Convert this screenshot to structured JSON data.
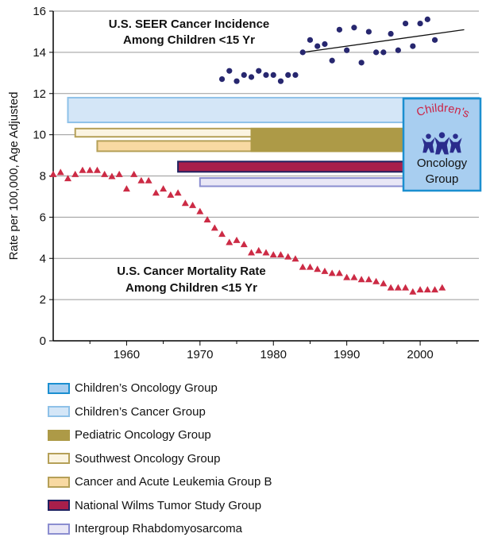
{
  "chart_data": {
    "type": "scatter",
    "ylabel": "Rate per 100,000, Age Adjusted",
    "xlabel": "",
    "xlim": [
      1950,
      2008
    ],
    "ylim": [
      0,
      16
    ],
    "x_ticks": [
      "1960",
      "1970",
      "1980",
      "1990",
      "2000"
    ],
    "y_ticks": [
      "0",
      "2",
      "4",
      "6",
      "8",
      "10",
      "12",
      "14",
      "16"
    ],
    "grid": true,
    "annotations": {
      "incidence": [
        "U.S. SEER Cancer Incidence",
        "Among Children <15 Yr"
      ],
      "mortality": [
        "U.S.  Cancer Mortality Rate",
        "Among Children <15 Yr"
      ]
    },
    "series": [
      {
        "key": "incidence",
        "marker": "circle",
        "color": "#27276f",
        "x": [
          1973,
          1974,
          1975,
          1976,
          1977,
          1978,
          1979,
          1980,
          1981,
          1982,
          1983,
          1984,
          1985,
          1986,
          1987,
          1988,
          1989,
          1990,
          1991,
          1992,
          1993,
          1994,
          1995,
          1996,
          1997,
          1998,
          1999,
          2000,
          2001,
          2002
        ],
        "y": [
          12.7,
          13.1,
          12.6,
          12.9,
          12.8,
          13.1,
          12.9,
          12.9,
          12.6,
          12.9,
          12.9,
          14.0,
          14.6,
          14.3,
          14.4,
          13.6,
          15.1,
          14.1,
          15.2,
          13.5,
          15.0,
          14.0,
          14.0,
          14.9,
          14.1,
          15.4,
          14.3,
          15.4,
          15.6,
          14.6
        ]
      },
      {
        "key": "mortality",
        "marker": "triangle",
        "color": "#cc2b45",
        "x": [
          1950,
          1951,
          1952,
          1953,
          1954,
          1955,
          1956,
          1957,
          1958,
          1959,
          1960,
          1961,
          1962,
          1963,
          1964,
          1965,
          1966,
          1967,
          1968,
          1969,
          1970,
          1971,
          1972,
          1973,
          1974,
          1975,
          1976,
          1977,
          1978,
          1979,
          1980,
          1981,
          1982,
          1983,
          1984,
          1985,
          1986,
          1987,
          1988,
          1989,
          1990,
          1991,
          1992,
          1993,
          1994,
          1995,
          1996,
          1997,
          1998,
          1999,
          2000,
          2001,
          2002,
          2003
        ],
        "y": [
          8.1,
          8.2,
          7.9,
          8.1,
          8.3,
          8.3,
          8.3,
          8.1,
          8.0,
          8.1,
          7.4,
          8.1,
          7.8,
          7.8,
          7.2,
          7.4,
          7.1,
          7.2,
          6.7,
          6.6,
          6.3,
          5.9,
          5.5,
          5.2,
          4.8,
          4.9,
          4.7,
          4.3,
          4.4,
          4.3,
          4.2,
          4.2,
          4.1,
          4.0,
          3.6,
          3.6,
          3.5,
          3.4,
          3.3,
          3.3,
          3.1,
          3.1,
          3.0,
          3.0,
          2.9,
          2.8,
          2.6,
          2.6,
          2.6,
          2.4,
          2.5,
          2.5,
          2.5,
          2.6
        ]
      }
    ],
    "trendline": {
      "x": [
        1984,
        2006
      ],
      "y": [
        14.0,
        15.1
      ]
    },
    "groups": [
      {
        "name": "Children's Cancer Group",
        "start": 1952,
        "end": 2008,
        "y_low": 10.6,
        "y_high": 11.8,
        "fill": "#d4e6f7",
        "stroke": "#8ec1e8"
      },
      {
        "name": "Southwest Oncology Group",
        "start": 1953,
        "end": 2008,
        "y_low": 9.9,
        "y_high": 10.3,
        "fill": "#fbf4e1",
        "stroke": "#b5a058"
      },
      {
        "name": "Cancer and Acute Leukemia Group B",
        "start": 1956,
        "end": 2008,
        "y_low": 9.2,
        "y_high": 9.7,
        "fill": "#f8d9a2",
        "stroke": "#b5a058"
      },
      {
        "name": "Pediatric Oncology Group",
        "start": 1977,
        "end": 2008,
        "y_low": 9.2,
        "y_high": 10.3,
        "fill": "#ad9a47",
        "stroke": "#ad9a47"
      },
      {
        "name": "National Wilms Tumor Study Group",
        "start": 1967,
        "end": 2008,
        "y_low": 8.2,
        "y_high": 8.7,
        "fill": "#a81f4b",
        "stroke": "#1f2260"
      },
      {
        "name": "Intergroup Rhabdomyosarcoma",
        "start": 1970,
        "end": 2008,
        "y_low": 7.5,
        "y_high": 7.9,
        "fill": "#e9e7f6",
        "stroke": "#8b8ed0"
      }
    ],
    "cog_badge": {
      "line1": "Children's",
      "line2": "Oncology",
      "line3": "Group",
      "fill": "#a8cef0",
      "stroke": "#1b8fd0",
      "text_color": "#cc2244"
    },
    "legend": [
      {
        "label": "Children’s Oncology Group",
        "fill": "#a8cef0",
        "stroke": "#1b8fd0"
      },
      {
        "label": "Children’s Cancer Group",
        "fill": "#d4e6f7",
        "stroke": "#8ec1e8"
      },
      {
        "label": "Pediatric Oncology Group",
        "fill": "#ad9a47",
        "stroke": "#ad9a47"
      },
      {
        "label": "Southwest Oncology Group",
        "fill": "#fbf4e1",
        "stroke": "#b5a058"
      },
      {
        "label": "Cancer and Acute Leukemia Group B",
        "fill": "#f8d9a2",
        "stroke": "#b5a058"
      },
      {
        "label": "National Wilms Tumor Study Group",
        "fill": "#a81f4b",
        "stroke": "#1f2260"
      },
      {
        "label": "Intergroup Rhabdomyosarcoma",
        "fill": "#e9e7f6",
        "stroke": "#8b8ed0"
      }
    ]
  }
}
